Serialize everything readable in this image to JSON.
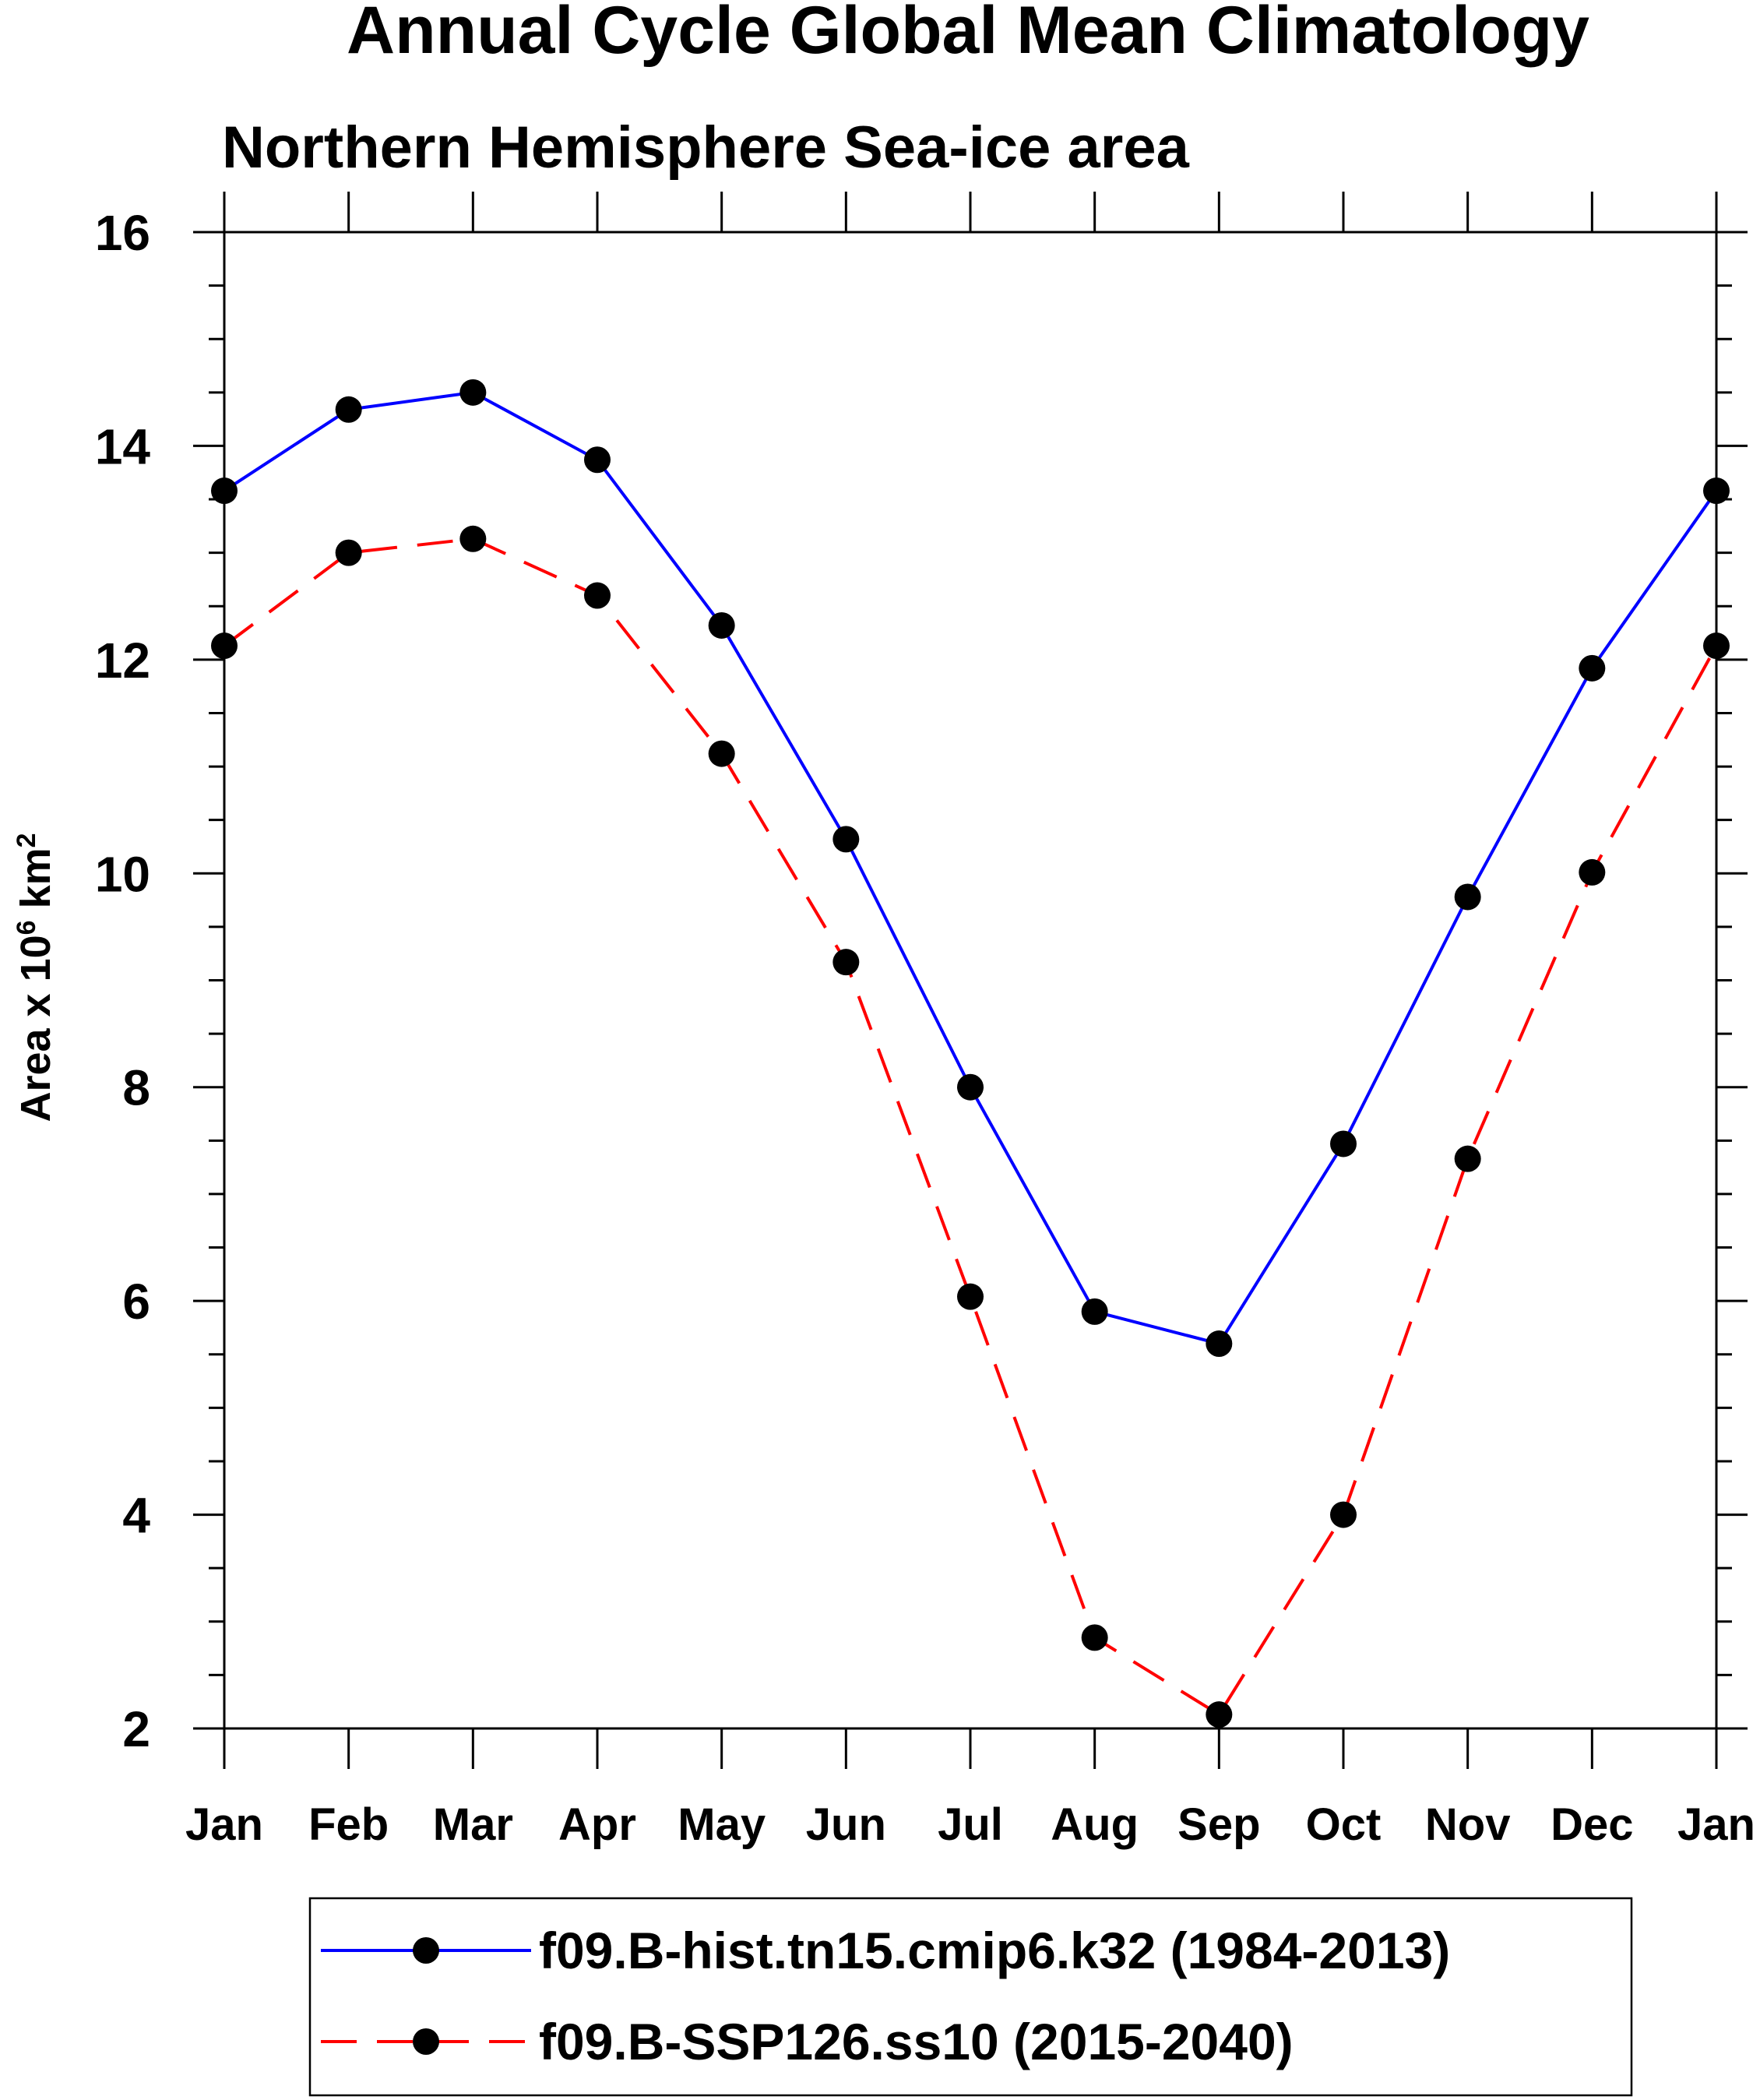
{
  "chart_data": {
    "type": "line",
    "title": "Annual Cycle Global Mean Climatology",
    "subtitle": "Northern Hemisphere Sea-ice area",
    "ylabel": {
      "base": "Area x 10",
      "exp": "6",
      "unit": " km",
      "unit_exp": "2"
    },
    "xlabel": "",
    "categories": [
      "Jan",
      "Feb",
      "Mar",
      "Apr",
      "May",
      "Jun",
      "Jul",
      "Aug",
      "Sep",
      "Oct",
      "Nov",
      "Dec",
      "Jan"
    ],
    "ylim": [
      2,
      16
    ],
    "yticks": [
      2,
      4,
      6,
      8,
      10,
      12,
      14,
      16
    ],
    "ytick_labels": [
      "2",
      "4",
      "6",
      "8",
      "10",
      "12",
      "14",
      "16"
    ],
    "y_minor_step": 0.5,
    "grid": false,
    "legend_position": "bottom",
    "series": [
      {
        "name": "f09.B-hist.tn15.cmip6.k32 (1984-2013)",
        "color": "#0000ff",
        "line_style": "solid",
        "marker": "filled-circle",
        "marker_color": "#000000",
        "values": [
          13.58,
          14.34,
          14.5,
          13.87,
          12.32,
          10.32,
          8.0,
          5.9,
          5.6,
          7.47,
          9.78,
          11.92,
          13.58
        ]
      },
      {
        "name": "f09.B-SSP126.ss10 (2015-2040)",
        "color": "#ff0000",
        "line_style": "dashed",
        "marker": "filled-circle",
        "marker_color": "#000000",
        "values": [
          12.13,
          13.0,
          13.13,
          12.6,
          11.12,
          9.17,
          6.04,
          2.85,
          2.13,
          4.0,
          7.33,
          10.01,
          12.13
        ]
      }
    ]
  }
}
